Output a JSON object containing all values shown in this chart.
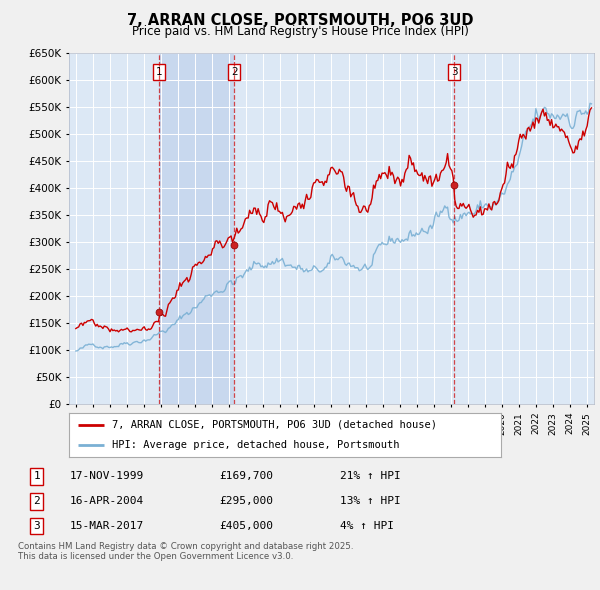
{
  "title": "7, ARRAN CLOSE, PORTSMOUTH, PO6 3UD",
  "subtitle": "Price paid vs. HM Land Registry's House Price Index (HPI)",
  "ylim": [
    0,
    650000
  ],
  "yticks": [
    0,
    50000,
    100000,
    150000,
    200000,
    250000,
    300000,
    350000,
    400000,
    450000,
    500000,
    550000,
    600000,
    650000
  ],
  "xlim_start": 1994.6,
  "xlim_end": 2025.4,
  "red_color": "#cc0000",
  "blue_color": "#7ab0d4",
  "sale_dates": [
    1999.88,
    2004.29,
    2017.21
  ],
  "sale_prices": [
    169700,
    295000,
    405000
  ],
  "sale_labels": [
    "1",
    "2",
    "3"
  ],
  "legend_red": "7, ARRAN CLOSE, PORTSMOUTH, PO6 3UD (detached house)",
  "legend_blue": "HPI: Average price, detached house, Portsmouth",
  "table_rows": [
    [
      "1",
      "17-NOV-1999",
      "£169,700",
      "21% ↑ HPI"
    ],
    [
      "2",
      "16-APR-2004",
      "£295,000",
      "13% ↑ HPI"
    ],
    [
      "3",
      "15-MAR-2017",
      "£405,000",
      "4% ↑ HPI"
    ]
  ],
  "footnote": "Contains HM Land Registry data © Crown copyright and database right 2025.\nThis data is licensed under the Open Government Licence v3.0.",
  "fig_bg_color": "#f0f0f0",
  "plot_bg_color": "#dce8f5",
  "highlight_bg_color": "#c8d8ee"
}
